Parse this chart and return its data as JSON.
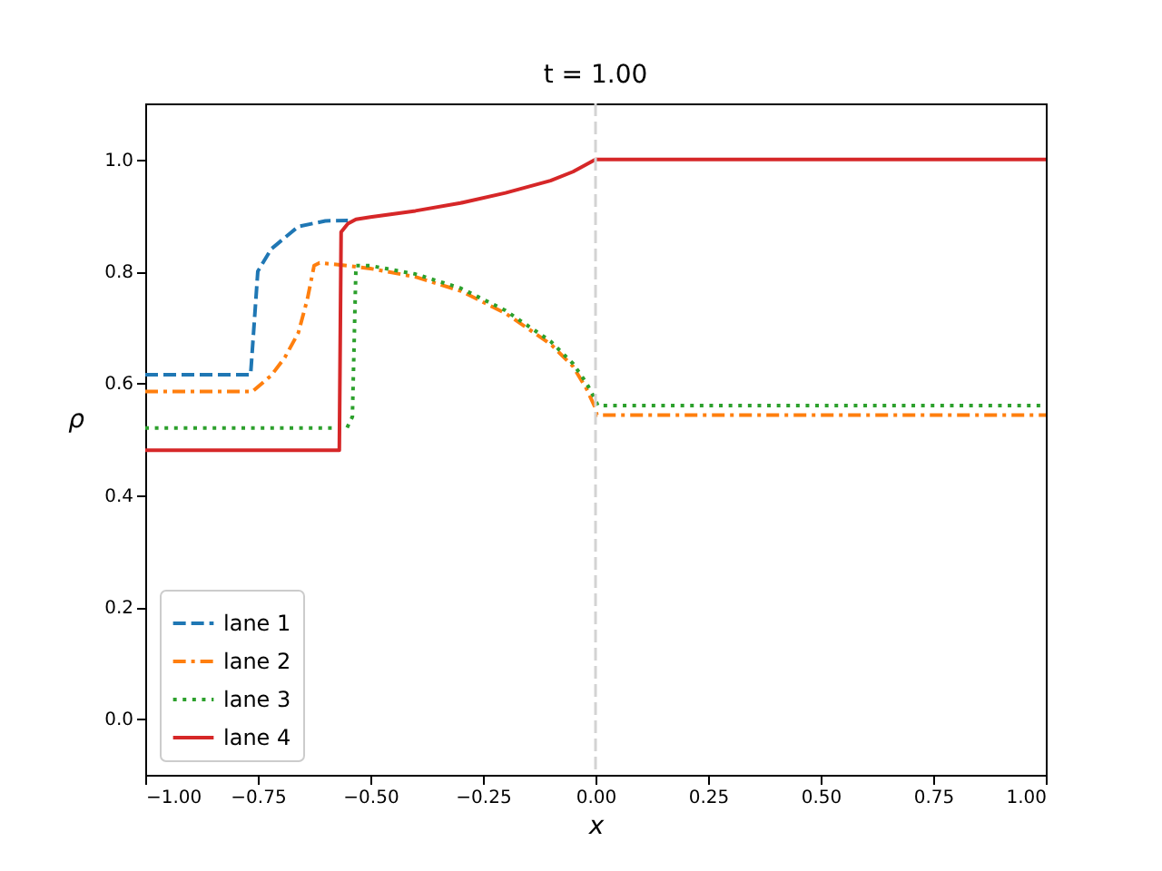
{
  "chart_data": {
    "type": "line",
    "title": "t = 1.00",
    "xlabel": "x",
    "ylabel": "ρ",
    "xlim": [
      -1,
      1
    ],
    "ylim": [
      -0.1,
      1.1
    ],
    "xticks": [
      {
        "value": -1,
        "label": "−1.00"
      },
      {
        "value": -0.75,
        "label": "−0.75"
      },
      {
        "value": -0.5,
        "label": "−0.50"
      },
      {
        "value": -0.25,
        "label": "−0.25"
      },
      {
        "value": 0,
        "label": "0.00"
      },
      {
        "value": 0.25,
        "label": "0.25"
      },
      {
        "value": 0.5,
        "label": "0.50"
      },
      {
        "value": 0.75,
        "label": "0.75"
      },
      {
        "value": 1,
        "label": "1.00"
      }
    ],
    "yticks": [
      {
        "value": 0,
        "label": "0.0"
      },
      {
        "value": 0.2,
        "label": "0.2"
      },
      {
        "value": 0.4,
        "label": "0.4"
      },
      {
        "value": 0.6,
        "label": "0.6"
      },
      {
        "value": 0.8,
        "label": "0.8"
      },
      {
        "value": 1,
        "label": "1.0"
      }
    ],
    "grid": false,
    "legend": "bottom left",
    "marker": "none",
    "series": [
      {
        "name": "lane 1",
        "color": "#1f77b4",
        "line_style": "dashed",
        "x": [
          -1,
          -0.766,
          -0.75,
          -0.72,
          -0.66,
          -0.6,
          -0.55
        ],
        "values": [
          0.615,
          0.615,
          0.8,
          0.84,
          0.88,
          0.89,
          0.891
        ]
      },
      {
        "name": "lane 2",
        "color": "#ff7f0e",
        "line_style": "dashdot",
        "x": [
          -1,
          -0.762,
          -0.72,
          -0.69,
          -0.66,
          -0.64,
          -0.625,
          -0.613,
          -0.55,
          -0.5,
          -0.4,
          -0.3,
          -0.2,
          -0.1,
          -0.05,
          -0.02,
          0,
          0.003,
          1
        ],
        "values": [
          0.585,
          0.585,
          0.614,
          0.646,
          0.69,
          0.75,
          0.81,
          0.815,
          0.81,
          0.805,
          0.79,
          0.765,
          0.725,
          0.67,
          0.63,
          0.59,
          0.555,
          0.543,
          0.543
        ]
      },
      {
        "name": "lane 3",
        "color": "#2ca02c",
        "line_style": "dotted",
        "x": [
          -1,
          -0.552,
          -0.54,
          -0.532,
          -0.5,
          -0.4,
          -0.3,
          -0.2,
          -0.1,
          -0.05,
          -0.02,
          0,
          0.005,
          1
        ],
        "values": [
          0.52,
          0.52,
          0.54,
          0.81,
          0.81,
          0.795,
          0.77,
          0.73,
          0.675,
          0.635,
          0.6,
          0.57,
          0.56,
          0.56
        ]
      },
      {
        "name": "lane 4",
        "color": "#d62728",
        "line_style": "solid",
        "x": [
          -1,
          -0.569,
          -0.565,
          -0.55,
          -0.532,
          -0.5,
          -0.4,
          -0.3,
          -0.2,
          -0.1,
          -0.05,
          0,
          1
        ],
        "values": [
          0.48,
          0.48,
          0.87,
          0.885,
          0.893,
          0.897,
          0.908,
          0.922,
          0.94,
          0.962,
          0.978,
          1.0,
          1.0
        ]
      }
    ],
    "ref_lines": [
      {
        "axis": "x",
        "value": 0,
        "color": "#d3d3d3",
        "line_style": "dashed"
      }
    ]
  }
}
